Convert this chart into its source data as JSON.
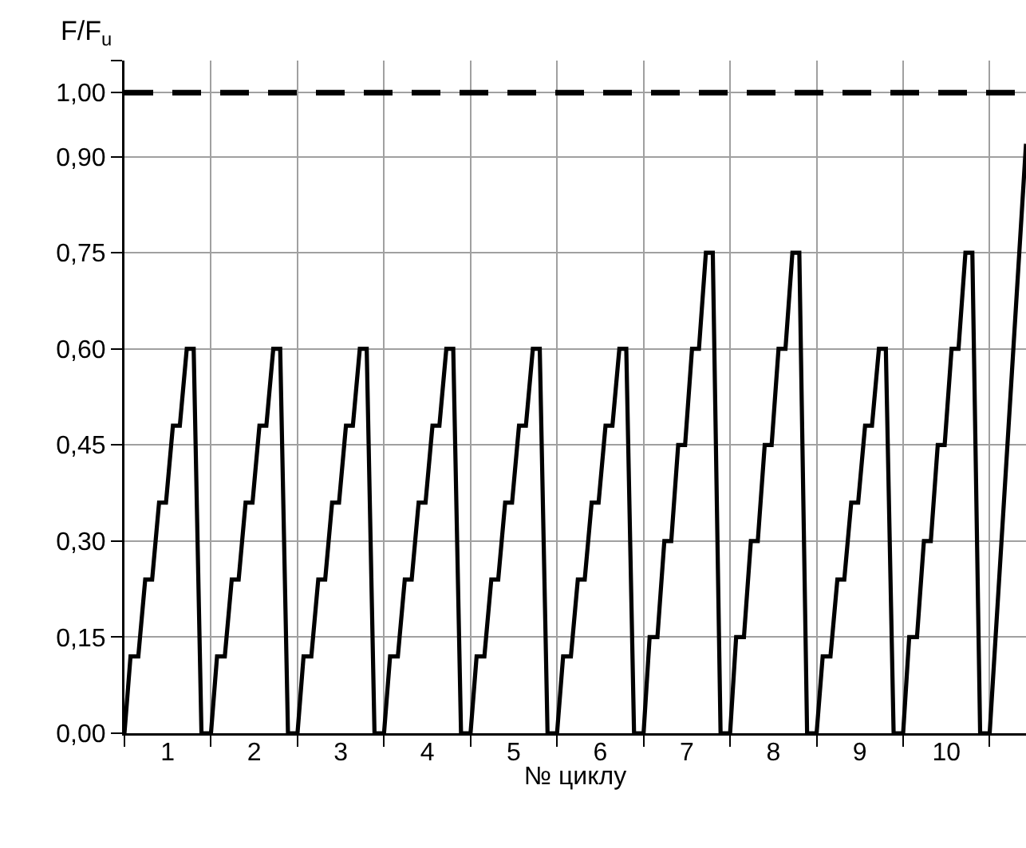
{
  "chart_data": {
    "type": "line",
    "xlabel": "№ циклу",
    "ylabel": "F/F$_{u}$",
    "color": "#000000",
    "x": [
      0,
      0.07,
      0.16,
      0.24,
      0.32,
      0.4,
      0.48,
      0.56,
      0.64,
      0.72,
      0.8,
      0.89,
      1,
      1.07,
      1.16,
      1.24,
      1.32,
      1.4,
      1.48,
      1.56,
      1.64,
      1.72,
      1.8,
      1.89,
      2,
      2.07,
      2.16,
      2.24,
      2.32,
      2.4,
      2.48,
      2.56,
      2.64,
      2.72,
      2.8,
      2.89,
      3,
      3.07,
      3.16,
      3.24,
      3.32,
      3.4,
      3.48,
      3.56,
      3.64,
      3.72,
      3.8,
      3.89,
      4,
      4.07,
      4.16,
      4.24,
      4.32,
      4.4,
      4.48,
      4.56,
      4.64,
      4.72,
      4.8,
      4.89,
      5,
      5.07,
      5.16,
      5.24,
      5.32,
      5.4,
      5.48,
      5.56,
      5.64,
      5.72,
      5.8,
      5.89,
      6,
      6.07,
      6.16,
      6.24,
      6.32,
      6.4,
      6.48,
      6.56,
      6.64,
      6.72,
      6.8,
      6.89,
      7,
      7.07,
      7.16,
      7.24,
      7.32,
      7.4,
      7.48,
      7.56,
      7.64,
      7.72,
      7.8,
      7.89,
      8,
      8.07,
      8.16,
      8.24,
      8.32,
      8.4,
      8.48,
      8.56,
      8.64,
      8.72,
      8.8,
      8.89,
      9,
      9.07,
      9.16,
      9.24,
      9.32,
      9.4,
      9.48,
      9.56,
      9.64,
      9.72,
      9.8,
      9.89,
      10,
      10.42
    ],
    "values": [
      0,
      0.12,
      0.12,
      0.24,
      0.24,
      0.36,
      0.36,
      0.48,
      0.48,
      0.6,
      0.6,
      0,
      0,
      0.12,
      0.12,
      0.24,
      0.24,
      0.36,
      0.36,
      0.48,
      0.48,
      0.6,
      0.6,
      0,
      0,
      0.12,
      0.12,
      0.24,
      0.24,
      0.36,
      0.36,
      0.48,
      0.48,
      0.6,
      0.6,
      0,
      0,
      0.12,
      0.12,
      0.24,
      0.24,
      0.36,
      0.36,
      0.48,
      0.48,
      0.6,
      0.6,
      0,
      0,
      0.12,
      0.12,
      0.24,
      0.24,
      0.36,
      0.36,
      0.48,
      0.48,
      0.6,
      0.6,
      0,
      0,
      0.12,
      0.12,
      0.24,
      0.24,
      0.36,
      0.36,
      0.48,
      0.48,
      0.6,
      0.6,
      0,
      0,
      0.15,
      0.15,
      0.3,
      0.3,
      0.45,
      0.45,
      0.6,
      0.6,
      0.75,
      0.75,
      0,
      0,
      0.15,
      0.15,
      0.3,
      0.3,
      0.45,
      0.45,
      0.6,
      0.6,
      0.75,
      0.75,
      0,
      0,
      0.12,
      0.12,
      0.24,
      0.24,
      0.36,
      0.36,
      0.48,
      0.48,
      0.6,
      0.6,
      0,
      0,
      0.15,
      0.15,
      0.3,
      0.3,
      0.45,
      0.45,
      0.6,
      0.6,
      0.75,
      0.75,
      0,
      0,
      0.92
    ],
    "xlim": [
      0,
      10.42
    ],
    "xticks": [
      {
        "value": 0,
        "label": null
      },
      {
        "value": 1,
        "label": null
      },
      {
        "value": 2,
        "label": null
      },
      {
        "value": 3,
        "label": null
      },
      {
        "value": 4,
        "label": null
      },
      {
        "value": 5,
        "label": null
      },
      {
        "value": 6,
        "label": null
      },
      {
        "value": 7,
        "label": null
      },
      {
        "value": 8,
        "label": null
      },
      {
        "value": 9,
        "label": null
      },
      {
        "value": 10,
        "label": null
      },
      {
        "value": 0.5,
        "label": "1"
      },
      {
        "value": 1.5,
        "label": "2"
      },
      {
        "value": 2.5,
        "label": "3"
      },
      {
        "value": 3.5,
        "label": "4"
      },
      {
        "value": 4.5,
        "label": "5"
      },
      {
        "value": 5.5,
        "label": "6"
      },
      {
        "value": 6.5,
        "label": "7"
      },
      {
        "value": 7.5,
        "label": "8"
      },
      {
        "value": 8.5,
        "label": "9"
      },
      {
        "value": 9.5,
        "label": "10"
      }
    ],
    "ylim": [
      0,
      1.05
    ],
    "yticks": [
      {
        "value": 0,
        "label": "0,00"
      },
      {
        "value": 0.15,
        "label": "0,15"
      },
      {
        "value": 0.3,
        "label": "0,30"
      },
      {
        "value": 0.45,
        "label": "0,45"
      },
      {
        "value": 0.6,
        "label": "0,60"
      },
      {
        "value": 0.75,
        "label": "0,75"
      },
      {
        "value": 0.9,
        "label": "0,90"
      },
      {
        "value": 1,
        "label": "1,00"
      },
      {
        "value": 1.05,
        "label": null
      }
    ],
    "grid": true,
    "line_style": "solid",
    "ref_lines": [
      {
        "axis": "y",
        "value": 1,
        "color": "#000000",
        "line_style": "dashed"
      }
    ]
  }
}
